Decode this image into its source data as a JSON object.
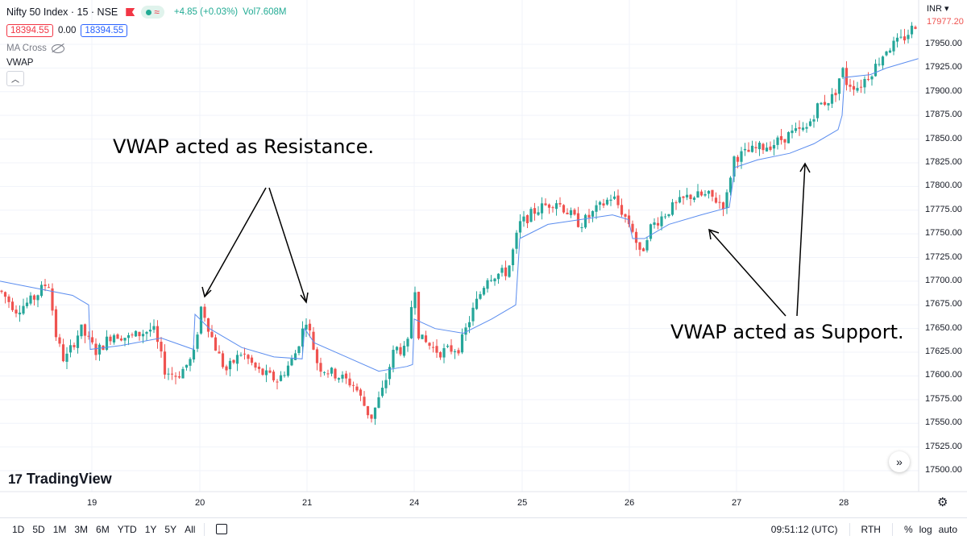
{
  "legend": {
    "symbol": "Nifty 50 Index · 15 · NSE",
    "change": "+4.85 (+0.03%)",
    "volume": "Vol7.608M",
    "bid": "18394.55",
    "spread": "0.00",
    "ask": "18394.55",
    "indicator1": "MA Cross",
    "indicator2": "VWAP"
  },
  "currency": "INR",
  "annotations": {
    "resistance": "VWAP acted as Resistance.",
    "support": "VWAP acted as Support."
  },
  "brand": "TradingView",
  "bottom_bar": {
    "ranges": [
      "1D",
      "5D",
      "1M",
      "3M",
      "6M",
      "YTD",
      "1Y",
      "5Y",
      "All"
    ],
    "time": "09:51:12 (UTC)",
    "session": "RTH",
    "percent": "%",
    "log": "log",
    "auto": "auto"
  },
  "colors": {
    "up": "#26a69a",
    "down": "#ef5350",
    "vwap": "#5b8def"
  },
  "chart_data": {
    "type": "candlestick",
    "title": "Nifty 50 Index · 15 · NSE",
    "y_ticks": [
      17950,
      17925,
      17900,
      17875,
      17850,
      17825,
      17800,
      17775,
      17750,
      17725,
      17700,
      17675,
      17650,
      17625,
      17600,
      17575,
      17550,
      17525,
      17500
    ],
    "y_tick_labels": [
      "17950.00",
      "17925.00",
      "17900.00",
      "17875.00",
      "17850.00",
      "17825.00",
      "17800.00",
      "17775.00",
      "17750.00",
      "17725.00",
      "17700.00",
      "17675.00",
      "17650.00",
      "17625.00",
      "17600.00",
      "17575.00",
      "17550.00",
      "17525.00",
      "17500.00"
    ],
    "current_price_label": "17977.20",
    "x_ticks": [
      "19",
      "20",
      "21",
      "24",
      "25",
      "26",
      "27",
      "28"
    ],
    "ylim": [
      17490,
      17980
    ],
    "series": [
      {
        "name": "Nifty 50 Index",
        "kind": "candles",
        "points": [
          {
            "day": "18",
            "close": 17690
          },
          {
            "day": "18",
            "close": 17668
          },
          {
            "day": "18",
            "close": 17702
          },
          {
            "day": "19",
            "close": 17640
          },
          {
            "day": "19",
            "close": 17625
          },
          {
            "day": "19",
            "close": 17660
          },
          {
            "day": "19",
            "close": 17640
          },
          {
            "day": "20",
            "close": 17600
          },
          {
            "day": "20",
            "close": 17675
          },
          {
            "day": "20",
            "close": 17620
          },
          {
            "day": "20",
            "close": 17615
          },
          {
            "day": "21",
            "close": 17660
          },
          {
            "day": "21",
            "close": 17600
          },
          {
            "day": "21",
            "close": 17595
          },
          {
            "day": "22",
            "close": 17560
          },
          {
            "day": "22",
            "close": 17610
          },
          {
            "day": "22",
            "close": 17625
          },
          {
            "day": "24",
            "close": 17705
          },
          {
            "day": "24",
            "close": 17640
          },
          {
            "day": "24",
            "close": 17625
          },
          {
            "day": "24",
            "close": 17650
          },
          {
            "day": "25",
            "close": 17720
          },
          {
            "day": "25",
            "close": 17760
          },
          {
            "day": "25",
            "close": 17790
          },
          {
            "day": "25",
            "close": 17760
          },
          {
            "day": "25",
            "close": 17795
          },
          {
            "day": "26",
            "close": 17745
          },
          {
            "day": "26",
            "close": 17770
          },
          {
            "day": "26",
            "close": 17790
          },
          {
            "day": "26",
            "close": 17780
          },
          {
            "day": "27",
            "close": 17830
          },
          {
            "day": "27",
            "close": 17850
          },
          {
            "day": "27",
            "close": 17855
          },
          {
            "day": "27",
            "close": 17885
          },
          {
            "day": "28",
            "close": 17930
          },
          {
            "day": "28",
            "close": 17910
          },
          {
            "day": "28",
            "close": 17945
          },
          {
            "day": "28",
            "close": 17977.2
          }
        ]
      },
      {
        "name": "VWAP",
        "kind": "line",
        "color": "#5b8def"
      }
    ],
    "grid": true
  }
}
